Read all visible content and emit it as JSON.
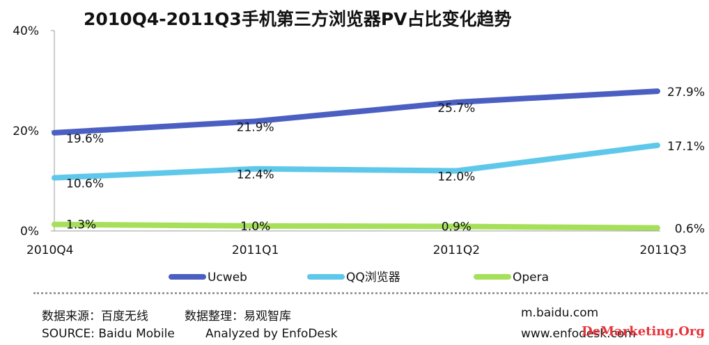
{
  "chart_data": {
    "type": "line",
    "title": "2010Q4-2011Q3手机第三方浏览器PV占比变化趋势",
    "categories": [
      "2010Q4",
      "2011Q1",
      "2011Q2",
      "2011Q3"
    ],
    "ylim": [
      0,
      40
    ],
    "y_ticks": [
      "0%",
      "20%",
      "40%"
    ],
    "y_tick_values": [
      0,
      20,
      40
    ],
    "grid": false,
    "legend_position": "bottom",
    "series": [
      {
        "name": "Ucweb",
        "values": [
          19.6,
          21.9,
          25.7,
          27.9
        ],
        "labels": [
          "19.6%",
          "21.9%",
          "25.7%",
          "27.9%"
        ],
        "color": "#4a5fc1"
      },
      {
        "name": "QQ浏览器",
        "values": [
          10.6,
          12.4,
          12.0,
          17.1
        ],
        "labels": [
          "10.6%",
          "12.4%",
          "12.0%",
          "17.1%"
        ],
        "color": "#5fc8ea"
      },
      {
        "name": "Opera",
        "values": [
          1.3,
          1.0,
          0.9,
          0.6
        ],
        "labels": [
          "1.3%",
          "1.0%",
          "0.9%",
          "0.6%"
        ],
        "color": "#a6e05a"
      }
    ]
  },
  "footer": {
    "source_cn": "数据来源：百度无线",
    "analysis_cn": "数据整理：易观智库",
    "source_en": "SOURCE: Baidu Mobile",
    "analysis_en": "Analyzed by EnfoDesk",
    "site1": "m.baidu.com",
    "site2": "www.enfodesk.com"
  },
  "watermark": "DeMarketing.Org"
}
